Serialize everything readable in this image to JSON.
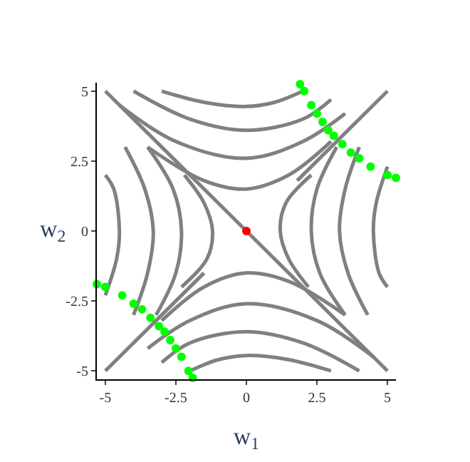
{
  "chart_data": {
    "type": "line",
    "xlabel": "w$_{1}$",
    "ylabel": "w$_{2}$",
    "xlim": [
      -5.3,
      5.3
    ],
    "ylim": [
      -5.3,
      5.3
    ],
    "xticks": [
      -5,
      -2.5,
      0,
      2.5,
      5
    ],
    "yticks": [
      -5,
      -2.5,
      0,
      2.5,
      5
    ],
    "legend": false,
    "marker": "none",
    "line_style": "solid",
    "series": [
      {
        "color": "#808080",
        "x": [
          -5,
          5
        ],
        "values": [
          5,
          -5
        ]
      },
      {
        "color": "#808080",
        "x": [
          -5,
          -1.5
        ],
        "values": [
          -5,
          -1.5
        ]
      },
      {
        "color": "#808080",
        "x": [
          1.8,
          5
        ],
        "values": [
          1.8,
          5
        ]
      },
      {
        "color": "#808080",
        "x": [
          -3,
          -1.5,
          0,
          1,
          2
        ],
        "values": [
          5,
          4.6,
          4.45,
          4.6,
          5
        ]
      },
      {
        "color": "#808080",
        "x": [
          -4,
          -2,
          0,
          2,
          3
        ],
        "values": [
          5,
          4,
          3.6,
          4,
          4.7
        ]
      },
      {
        "color": "#808080",
        "x": [
          -4.5,
          -2.5,
          0,
          2,
          3.5
        ],
        "values": [
          4.5,
          3.2,
          2.6,
          3.2,
          4.2
        ]
      },
      {
        "color": "#808080",
        "x": [
          -3.5,
          -1.5,
          0,
          1.5,
          3
        ],
        "values": [
          3,
          1.8,
          1.5,
          2,
          3.2
        ]
      },
      {
        "color": "#808080",
        "x": [
          -2,
          -1,
          0,
          1.5,
          3
        ],
        "values": [
          -5,
          -4.6,
          -4.45,
          -4.6,
          -5
        ]
      },
      {
        "color": "#808080",
        "x": [
          -3,
          -2,
          0,
          2,
          4
        ],
        "values": [
          -4.7,
          -4,
          -3.6,
          -4,
          -5
        ]
      },
      {
        "color": "#808080",
        "x": [
          -3.5,
          -2,
          0,
          2.5,
          4.5
        ],
        "values": [
          -4.2,
          -3.2,
          -2.6,
          -3.2,
          -4.5
        ]
      },
      {
        "color": "#808080",
        "x": [
          -3,
          -1.5,
          0,
          1.5,
          3.5
        ],
        "values": [
          -3.2,
          -2,
          -1.5,
          -1.8,
          -3
        ]
      },
      {
        "color": "#808080",
        "x": [
          2.3,
          1.4,
          1.2,
          1.5,
          2.2
        ],
        "values": [
          2,
          1,
          0,
          -1,
          -2
        ]
      },
      {
        "color": "#808080",
        "x": [
          3.2,
          2.5,
          2.3,
          2.6,
          3.5
        ],
        "values": [
          3,
          1.5,
          0,
          -1.5,
          -3
        ]
      },
      {
        "color": "#808080",
        "x": [
          4,
          3.5,
          3.3,
          3.6,
          4.3
        ],
        "values": [
          3,
          1.5,
          0,
          -1.5,
          -3
        ]
      },
      {
        "color": "#808080",
        "x": [
          5,
          4.6,
          4.5,
          4.7,
          5
        ],
        "values": [
          2.3,
          1,
          0,
          -1.5,
          -2
        ]
      },
      {
        "color": "#808080",
        "x": [
          -2.2,
          -1.5,
          -1.2,
          -1.4,
          -2.3
        ],
        "values": [
          2,
          1,
          0,
          -1,
          -2
        ]
      },
      {
        "color": "#808080",
        "x": [
          -3.5,
          -2.6,
          -2.3,
          -2.5,
          -3.2
        ],
        "values": [
          3,
          1.5,
          0,
          -1.5,
          -3
        ]
      },
      {
        "color": "#808080",
        "x": [
          -4.3,
          -3.6,
          -3.3,
          -3.5,
          -4
        ],
        "values": [
          3,
          1.5,
          0,
          -1.5,
          -3
        ]
      },
      {
        "color": "#808080",
        "x": [
          -5,
          -4.7,
          -4.5,
          -4.6,
          -5
        ],
        "values": [
          2,
          1.5,
          0,
          -1,
          -2.3
        ]
      },
      {
        "type": "scatter",
        "marker": "circle",
        "color": "#00ff00",
        "x": [
          1.9,
          2.05,
          2.3,
          2.5,
          2.7,
          2.9,
          3.1,
          3.4,
          3.7,
          4,
          4.4,
          5,
          5.3,
          -1.9,
          -2.05,
          -2.3,
          -2.5,
          -2.7,
          -2.9,
          -3.1,
          -3.4,
          -3.7,
          -4,
          -4.4,
          -5,
          -5.3
        ],
        "values": [
          5.25,
          5,
          4.5,
          4.2,
          3.9,
          3.6,
          3.4,
          3.1,
          2.8,
          2.6,
          2.3,
          2,
          1.9,
          -5.25,
          -5,
          -4.5,
          -4.2,
          -3.9,
          -3.6,
          -3.4,
          -3.1,
          -2.8,
          -2.6,
          -2.3,
          -2,
          -1.9
        ]
      },
      {
        "type": "scatter",
        "marker": "circle",
        "color": "#ff0000",
        "x": [
          0
        ],
        "values": [
          0
        ]
      }
    ]
  }
}
